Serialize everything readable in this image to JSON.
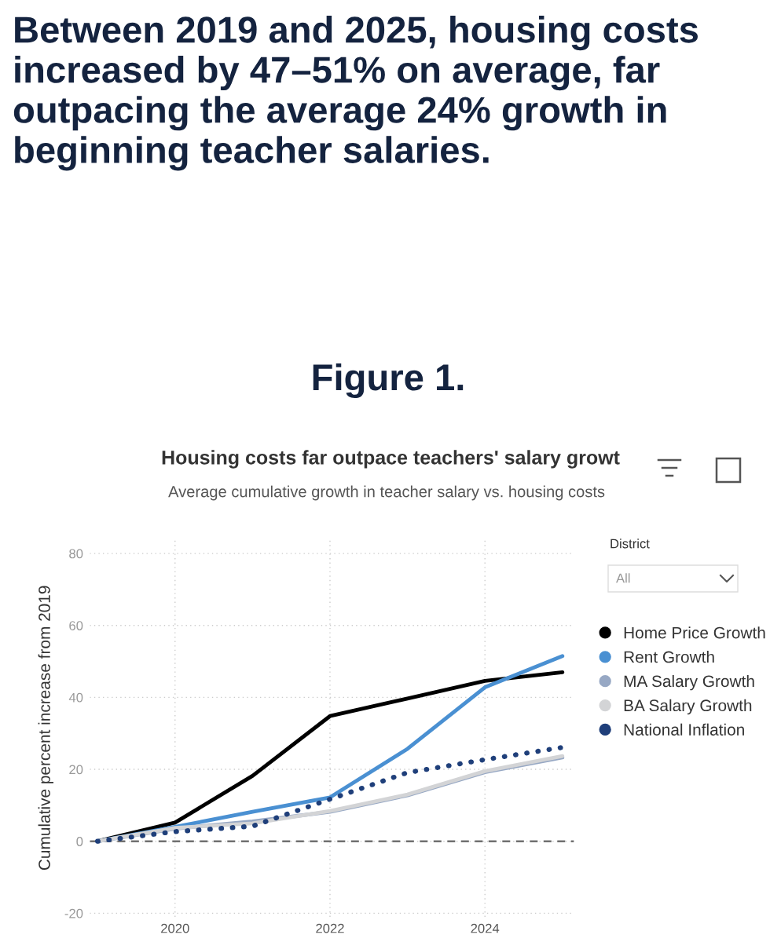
{
  "chart_data": {
    "type": "line",
    "title": "Housing costs far outpace teachers' salary growt",
    "subtitle": "Average cumulative growth in teacher salary vs. housing costs",
    "ylabel": "Cumulative percent increase from 2019",
    "annotations": [
      "Between 2019 and 2025, housing costs increased by 47–51% on average, far outpacing the average 24% growth in beginning teacher salaries.",
      "Figure 1.",
      "District",
      "All"
    ],
    "x": [
      2019,
      2020,
      2021,
      2022,
      2023,
      2024,
      2025
    ],
    "series": [
      {
        "name": "Home Price Growth",
        "color": "#000000",
        "values": [
          0,
          5.2,
          18.2,
          34.8,
          39.7,
          44.6,
          47
        ]
      },
      {
        "name": "Rent Growth",
        "color": "#4a90d2",
        "values": [
          0,
          4,
          8.2,
          12.2,
          25.7,
          42.8,
          51.5
        ]
      },
      {
        "name": "MA Salary Growth",
        "color": "#97a8c4",
        "values": [
          0,
          3.5,
          5.5,
          8.2,
          12.8,
          19.2,
          23.3
        ]
      },
      {
        "name": "BA Salary Growth",
        "color": "#d3d4d6",
        "values": [
          0,
          3.7,
          5,
          8.4,
          13,
          19.5,
          23.7
        ]
      },
      {
        "name": "National Inflation",
        "color": "#1f3f7a",
        "line_style": "dotted",
        "values": [
          0,
          2.7,
          4.2,
          11.7,
          19.1,
          22.7,
          26.1
        ]
      }
    ],
    "xlim": [
      2018.9,
      2025.15
    ],
    "xticks": [
      2020,
      2022,
      2024
    ],
    "ylim": [
      -21,
      84
    ],
    "yticks": [
      -20,
      0,
      20,
      40,
      60,
      80
    ],
    "ref_lines": [
      {
        "axis": "y",
        "value": 0,
        "color": "#707070",
        "line_style": "dashed"
      }
    ],
    "grid": true,
    "legend": "right",
    "marker": "none",
    "line_style": "solid"
  }
}
